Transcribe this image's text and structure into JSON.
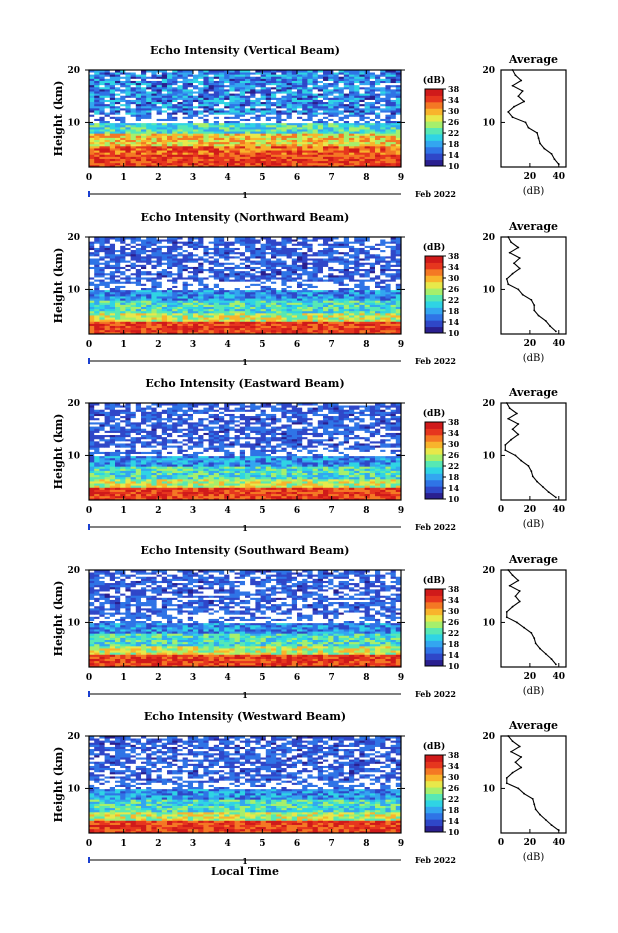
{
  "colors": {
    "scale": [
      "#2a1f8f",
      "#2f47c8",
      "#2f74e6",
      "#33a6f0",
      "#2fd4e4",
      "#57e8b4",
      "#a6ef6c",
      "#e8e84a",
      "#f8b42c",
      "#f47824",
      "#e6361e",
      "#d01a1a"
    ],
    "white": "#ffffff"
  },
  "chart_data": [
    {
      "type": "heatmap",
      "title": "Echo Intensity (Vertical Beam)",
      "ylabel": "Height (km)",
      "xlabel": "",
      "date_label": "Feb 2022",
      "day_label": "1",
      "x_ticks": [
        "0",
        "1",
        "2",
        "3",
        "4",
        "5",
        "6",
        "7",
        "8",
        "9"
      ],
      "y_ticks": [
        "10",
        "20"
      ],
      "xlim": [
        0,
        9
      ],
      "ylim": [
        1.5,
        20
      ],
      "colorbar": {
        "unit": "(dB)",
        "ticks": [
          "10",
          "14",
          "18",
          "22",
          "26",
          "30",
          "34",
          "38"
        ],
        "range": [
          10,
          38
        ]
      },
      "profile": {
        "title": "Average",
        "xlabel": "(dB)",
        "x_ticks": [
          "20",
          "40"
        ],
        "y_ticks": [
          "10",
          "20"
        ],
        "xlim": [
          0,
          45
        ],
        "heights": [
          2,
          3,
          4,
          5,
          6,
          7,
          8,
          9,
          10,
          11,
          12,
          13,
          14,
          15,
          16,
          17,
          18,
          19,
          20
        ],
        "values": [
          40,
          37,
          35,
          30,
          27,
          26,
          25,
          19,
          17,
          8,
          5,
          9,
          16,
          12,
          15,
          8,
          14,
          10,
          8
        ]
      }
    },
    {
      "type": "heatmap",
      "title": "Echo Intensity (Northward Beam)",
      "ylabel": "Height (km)",
      "xlabel": "",
      "date_label": "Feb 2022",
      "day_label": "1",
      "x_ticks": [
        "0",
        "1",
        "2",
        "3",
        "4",
        "5",
        "6",
        "7",
        "8",
        "9"
      ],
      "y_ticks": [
        "10",
        "20"
      ],
      "xlim": [
        0,
        9
      ],
      "ylim": [
        1.5,
        20
      ],
      "colorbar": {
        "unit": "(dB)",
        "ticks": [
          "10",
          "14",
          "18",
          "22",
          "26",
          "30",
          "34",
          "38"
        ],
        "range": [
          10,
          38
        ]
      },
      "profile": {
        "title": "Average",
        "xlabel": "(dB)",
        "x_ticks": [
          "20",
          "40"
        ],
        "y_ticks": [
          "10",
          "20"
        ],
        "xlim": [
          0,
          45
        ],
        "heights": [
          2,
          3,
          4,
          5,
          6,
          7,
          8,
          9,
          10,
          11,
          12,
          13,
          14,
          15,
          16,
          17,
          18,
          19,
          20
        ],
        "values": [
          38,
          34,
          31,
          26,
          23,
          23,
          21,
          15,
          12,
          5,
          4,
          8,
          13,
          9,
          13,
          6,
          12,
          7,
          5
        ]
      }
    },
    {
      "type": "heatmap",
      "title": "Echo Intensity (Eastward Beam)",
      "ylabel": "Height (km)",
      "xlabel": "",
      "date_label": "Feb 2022",
      "day_label": "1",
      "x_ticks": [
        "0",
        "1",
        "2",
        "3",
        "4",
        "5",
        "6",
        "7",
        "8",
        "9"
      ],
      "y_ticks": [
        "10",
        "20"
      ],
      "xlim": [
        0,
        9
      ],
      "ylim": [
        1.5,
        20
      ],
      "colorbar": {
        "unit": "(dB)",
        "ticks": [
          "10",
          "14",
          "18",
          "22",
          "26",
          "30",
          "34",
          "38"
        ],
        "range": [
          10,
          38
        ]
      },
      "profile": {
        "title": "Average",
        "xlabel": "(dB)",
        "x_ticks": [
          "0",
          "20",
          "40"
        ],
        "y_ticks": [
          "10",
          "20"
        ],
        "xlim": [
          0,
          45
        ],
        "heights": [
          2,
          3,
          4,
          5,
          6,
          7,
          8,
          9,
          10,
          11,
          12,
          13,
          14,
          15,
          16,
          17,
          18,
          19,
          20
        ],
        "values": [
          38,
          33,
          29,
          25,
          22,
          21,
          19,
          14,
          10,
          3,
          3,
          7,
          12,
          8,
          12,
          5,
          11,
          6,
          4
        ]
      }
    },
    {
      "type": "heatmap",
      "title": "Echo Intensity (Southward Beam)",
      "ylabel": "Height (km)",
      "xlabel": "",
      "date_label": "Feb 2022",
      "day_label": "1",
      "x_ticks": [
        "0",
        "1",
        "2",
        "3",
        "4",
        "5",
        "6",
        "7",
        "8",
        "9"
      ],
      "y_ticks": [
        "10",
        "20"
      ],
      "xlim": [
        0,
        9
      ],
      "ylim": [
        1.5,
        20
      ],
      "colorbar": {
        "unit": "(dB)",
        "ticks": [
          "10",
          "14",
          "18",
          "22",
          "26",
          "30",
          "34",
          "38"
        ],
        "range": [
          10,
          38
        ]
      },
      "profile": {
        "title": "Average",
        "xlabel": "(dB)",
        "x_ticks": [
          "20",
          "40"
        ],
        "y_ticks": [
          "10",
          "20"
        ],
        "xlim": [
          0,
          45
        ],
        "heights": [
          2,
          3,
          4,
          5,
          6,
          7,
          8,
          9,
          10,
          11,
          12,
          13,
          14,
          15,
          16,
          17,
          18,
          19,
          20
        ],
        "values": [
          38,
          35,
          31,
          27,
          24,
          23,
          21,
          16,
          11,
          4,
          4,
          8,
          13,
          10,
          13,
          6,
          12,
          8,
          5
        ]
      }
    },
    {
      "type": "heatmap",
      "title": "Echo Intensity (Westward Beam)",
      "ylabel": "Height (km)",
      "xlabel": "Local Time",
      "date_label": "Feb 2022",
      "day_label": "1",
      "x_ticks": [
        "0",
        "1",
        "2",
        "3",
        "4",
        "5",
        "6",
        "7",
        "8",
        "9"
      ],
      "y_ticks": [
        "10",
        "20"
      ],
      "xlim": [
        0,
        9
      ],
      "ylim": [
        1.5,
        20
      ],
      "colorbar": {
        "unit": "(dB)",
        "ticks": [
          "10",
          "14",
          "18",
          "22",
          "26",
          "30",
          "34",
          "38"
        ],
        "range": [
          10,
          38
        ]
      },
      "profile": {
        "title": "Average",
        "xlabel": "(dB)",
        "x_ticks": [
          "0",
          "20",
          "40"
        ],
        "y_ticks": [
          "10",
          "20"
        ],
        "xlim": [
          0,
          45
        ],
        "heights": [
          2,
          3,
          4,
          5,
          6,
          7,
          8,
          9,
          10,
          11,
          12,
          13,
          14,
          15,
          16,
          17,
          18,
          19,
          20
        ],
        "values": [
          40,
          35,
          31,
          27,
          24,
          23,
          22,
          16,
          12,
          4,
          4,
          8,
          14,
          10,
          14,
          7,
          13,
          8,
          5
        ]
      }
    }
  ]
}
